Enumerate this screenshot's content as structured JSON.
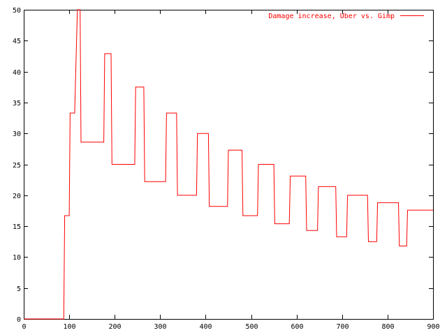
{
  "chart_data": {
    "type": "line",
    "style": "step",
    "title": "",
    "xlabel": "",
    "ylabel": "",
    "xlim": [
      0,
      900
    ],
    "ylim": [
      0,
      50
    ],
    "x_ticks": [
      0,
      100,
      200,
      300,
      400,
      500,
      600,
      700,
      800,
      900
    ],
    "y_ticks": [
      0,
      5,
      10,
      15,
      20,
      25,
      30,
      35,
      40,
      45,
      50
    ],
    "grid": false,
    "legend_position": "top-right",
    "series": [
      {
        "name": "Damage increase, Uber vs. Gimp",
        "color": "#ff0000",
        "points": [
          [
            0,
            0
          ],
          [
            88,
            0
          ],
          [
            90,
            16.7
          ],
          [
            100,
            16.7
          ],
          [
            102,
            33.3
          ],
          [
            112,
            33.3
          ],
          [
            118,
            50
          ],
          [
            124,
            50
          ],
          [
            126,
            28.6
          ],
          [
            176,
            28.6
          ],
          [
            178,
            42.9
          ],
          [
            192,
            42.9
          ],
          [
            194,
            25.0
          ],
          [
            244,
            25.0
          ],
          [
            246,
            37.5
          ],
          [
            264,
            37.5
          ],
          [
            266,
            22.2
          ],
          [
            312,
            22.2
          ],
          [
            314,
            33.3
          ],
          [
            336,
            33.3
          ],
          [
            338,
            20.0
          ],
          [
            380,
            20.0
          ],
          [
            382,
            30.0
          ],
          [
            406,
            30.0
          ],
          [
            408,
            18.2
          ],
          [
            448,
            18.2
          ],
          [
            450,
            27.3
          ],
          [
            480,
            27.3
          ],
          [
            482,
            16.7
          ],
          [
            514,
            16.7
          ],
          [
            516,
            25.0
          ],
          [
            550,
            25.0
          ],
          [
            552,
            15.4
          ],
          [
            584,
            15.4
          ],
          [
            586,
            23.1
          ],
          [
            620,
            23.1
          ],
          [
            622,
            14.3
          ],
          [
            646,
            14.3
          ],
          [
            648,
            21.4
          ],
          [
            686,
            21.4
          ],
          [
            688,
            13.3
          ],
          [
            710,
            13.3
          ],
          [
            712,
            20.0
          ],
          [
            756,
            20.0
          ],
          [
            758,
            12.5
          ],
          [
            776,
            12.5
          ],
          [
            778,
            18.8
          ],
          [
            824,
            18.8
          ],
          [
            826,
            11.8
          ],
          [
            842,
            11.8
          ],
          [
            844,
            17.6
          ],
          [
            900,
            17.6
          ]
        ]
      }
    ]
  }
}
